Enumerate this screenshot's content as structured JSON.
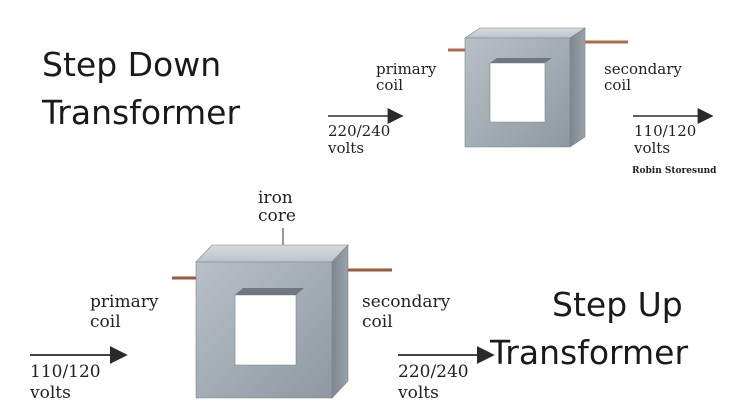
{
  "step_down": {
    "title_line1": "Step Down",
    "title_line2": "Transformer",
    "primary_line1": "primary",
    "primary_line2": "coil",
    "secondary_line1": "secondary",
    "secondary_line2": "coil",
    "input_voltage": "220/240",
    "input_unit": "volts",
    "output_voltage": "110/120",
    "output_unit": "volts",
    "credit": "Robin Storesund"
  },
  "step_up": {
    "title_line1": "Step Up",
    "title_line2": "Transformer",
    "core_line1": "iron",
    "core_line2": "core",
    "primary_line1": "primary",
    "primary_line2": "coil",
    "secondary_line1": "secondary",
    "secondary_line2": "coil",
    "input_voltage": "110/120",
    "input_unit": "volts",
    "output_voltage": "220/240",
    "output_unit": "volts"
  },
  "colors": {
    "core": "#a9b0b8",
    "core_top": "#c8ced4",
    "core_side": "#8a929b",
    "copper": "#c87a56",
    "arrow": "#2a2a2a"
  }
}
